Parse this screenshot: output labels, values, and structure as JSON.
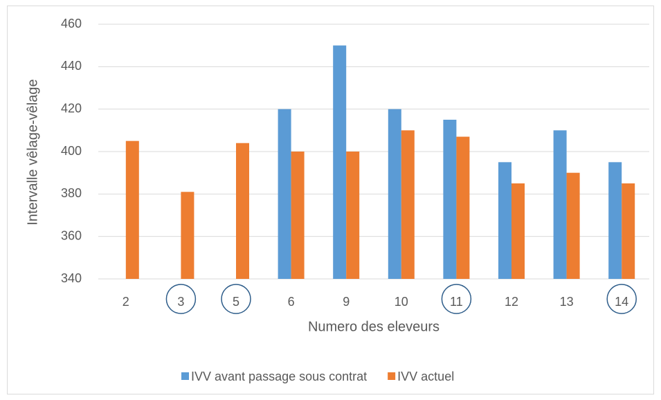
{
  "chart_data": {
    "type": "bar",
    "categories": [
      "2",
      "3",
      "5",
      "6",
      "9",
      "10",
      "11",
      "12",
      "13",
      "14"
    ],
    "series": [
      {
        "name": "IVV avant passage sous contrat",
        "color": "#5b9bd5",
        "values": [
          null,
          null,
          null,
          420,
          450,
          420,
          415,
          395,
          410,
          395
        ]
      },
      {
        "name": "IVV actuel",
        "color": "#ed7d31",
        "values": [
          405,
          381,
          404,
          400,
          400,
          410,
          407,
          385,
          390,
          385
        ]
      }
    ],
    "ylim": [
      340,
      460
    ],
    "yticks": [
      340,
      360,
      380,
      400,
      420,
      440,
      460
    ],
    "grid": true,
    "xlabel": "Numero des eleveurs",
    "ylabel": "Intervalle vêlage-vêlage",
    "legend": "bottom"
  }
}
